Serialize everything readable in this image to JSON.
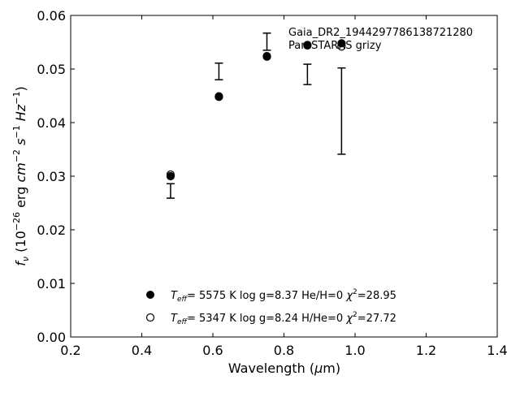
{
  "chart_data": {
    "type": "scatter",
    "xlabel": "Wavelength (μm)",
    "ylabel": "f_ν (10^-26 erg cm^-2 s^-1 Hz^-1)",
    "xlim": [
      0.2,
      1.4
    ],
    "ylim": [
      0.0,
      0.06
    ],
    "xticks": [
      "0.2",
      "0.4",
      "0.6",
      "0.8",
      "1.0",
      "1.2",
      "1.4"
    ],
    "yticks": [
      "0.00",
      "0.01",
      "0.02",
      "0.03",
      "0.04",
      "0.05",
      "0.06"
    ],
    "grid": false,
    "annotation": {
      "line1": "Gaia_DR2_1944297786138721280",
      "line2": "Pan-STARRS grizy"
    },
    "observed": {
      "x": [
        0.481,
        0.617,
        0.752,
        0.866,
        0.962
      ],
      "y_low": [
        0.0259,
        0.048,
        0.0535,
        0.0471,
        0.0341
      ],
      "y_high": [
        0.0286,
        0.0511,
        0.0567,
        0.0509,
        0.0502
      ]
    },
    "series": [
      {
        "marker": "filled-circle",
        "teff": "5575 K",
        "logg": "log g=8.37",
        "comp": "He/H=0",
        "chi2": "=28.95",
        "x": [
          0.481,
          0.617,
          0.752,
          0.866,
          0.962
        ],
        "y": [
          0.03,
          0.0448,
          0.0523,
          0.0545,
          0.0548
        ]
      },
      {
        "marker": "open-circle",
        "teff": "5347 K",
        "logg": "log g=8.24",
        "comp": "H/He=0",
        "chi2": "=27.72",
        "x": [
          0.481,
          0.617,
          0.752,
          0.866,
          0.962
        ],
        "y": [
          0.0303,
          0.0449,
          0.0524,
          0.0544,
          0.0542
        ]
      }
    ],
    "legend": {
      "position": "lower-center"
    }
  }
}
